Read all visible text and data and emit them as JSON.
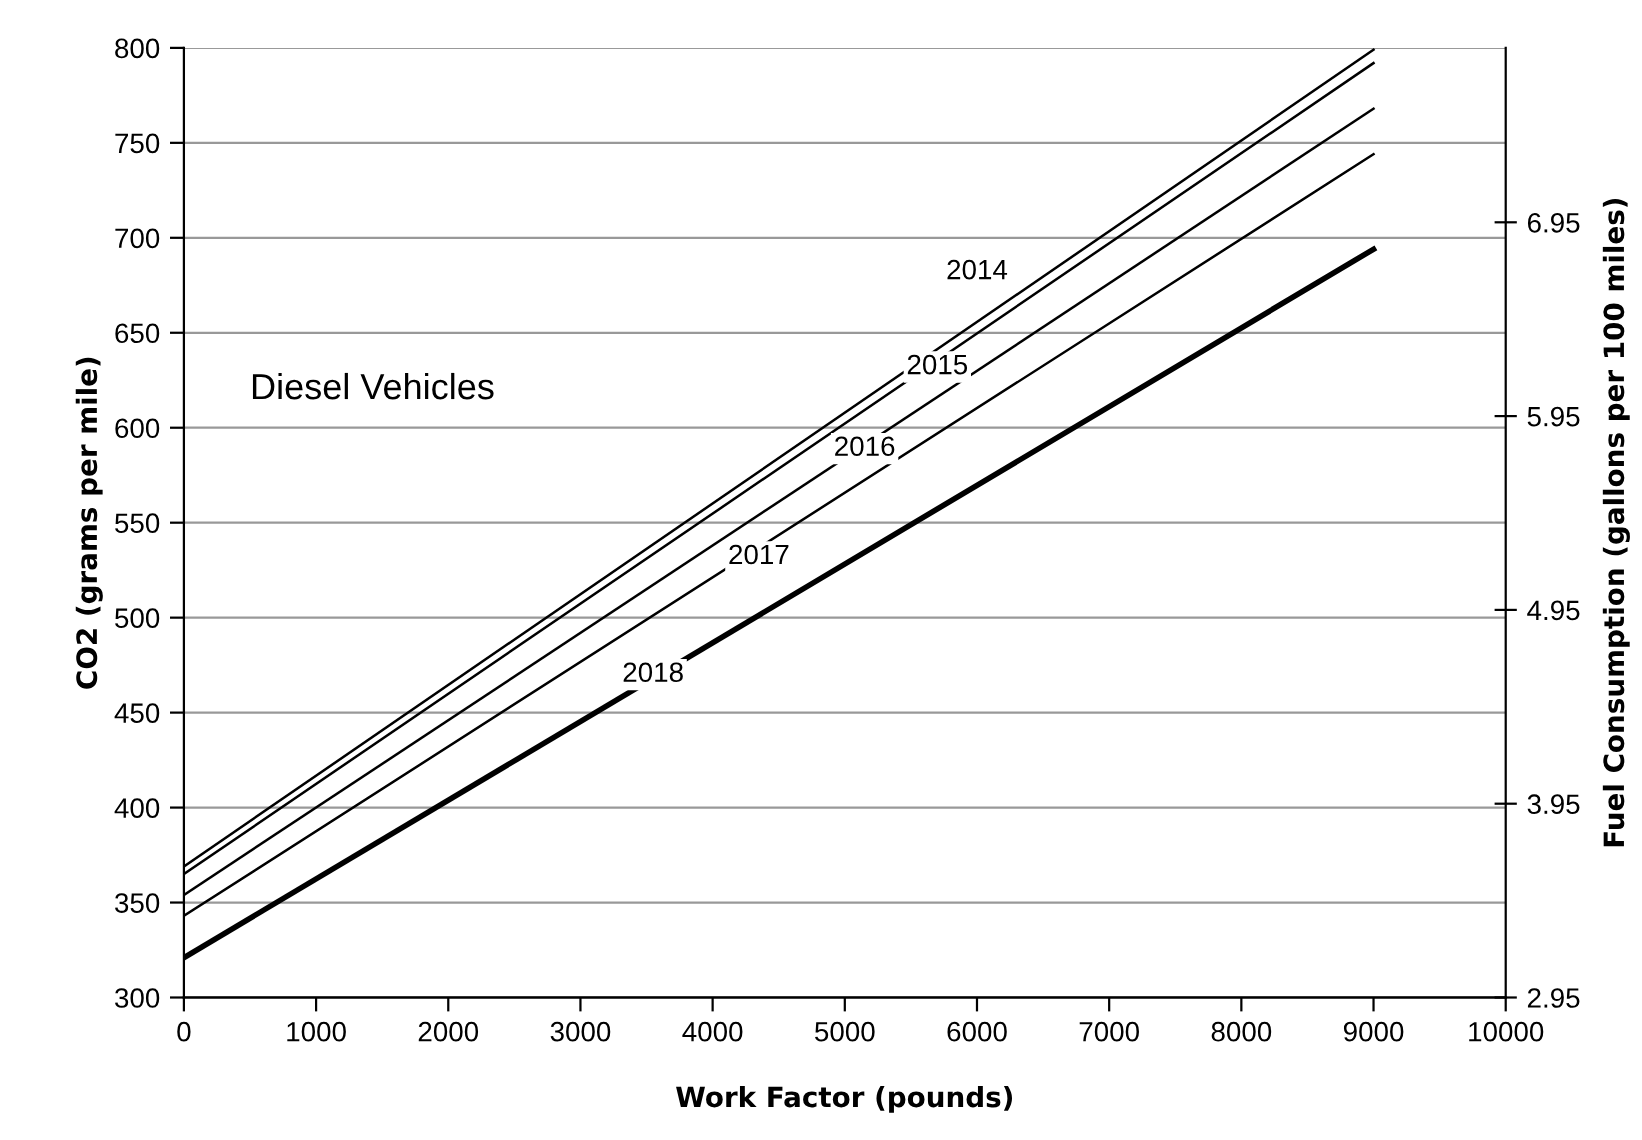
{
  "chart_data": {
    "type": "line",
    "xlabel": "Work Factor (pounds)",
    "ylabel": "CO2 (grams per mile)",
    "y2label": "Fuel Consumption (gallons per 100 miles)",
    "x": [
      0,
      9000
    ],
    "series": [
      {
        "color": "#000000",
        "values": [
          369,
          799
        ]
      },
      {
        "color": "#000000",
        "values": [
          365,
          792
        ]
      },
      {
        "color": "#000000",
        "values": [
          354,
          768
        ]
      },
      {
        "color": "#000000",
        "values": [
          343,
          744
        ]
      },
      {
        "color": "#000000",
        "values": [
          321,
          694
        ]
      }
    ],
    "annotations": [
      "Diesel Vehicles",
      {
        "text": "2014",
        "x": 6000,
        "y": 682
      },
      {
        "text": "2015",
        "x": 5700,
        "y": 632
      },
      {
        "text": "2016",
        "x": 5150,
        "y": 589
      },
      {
        "text": "2017",
        "x": 4350,
        "y": 532
      },
      {
        "text": "2018",
        "x": 3550,
        "y": 470
      }
    ],
    "xlim": [
      0,
      10000
    ],
    "xticks": [
      0,
      1000,
      2000,
      3000,
      4000,
      5000,
      6000,
      7000,
      8000,
      9000,
      10000
    ],
    "ylim": [
      300,
      800
    ],
    "yticks": [
      300,
      350,
      400,
      450,
      500,
      550,
      600,
      650,
      700,
      750,
      800
    ],
    "y2lim": [
      2.95,
      7.85
    ],
    "y2ticks": [
      2.95,
      3.95,
      4.95,
      5.95,
      6.95
    ],
    "grid": "y",
    "marker": "none",
    "line_style": "solid"
  }
}
